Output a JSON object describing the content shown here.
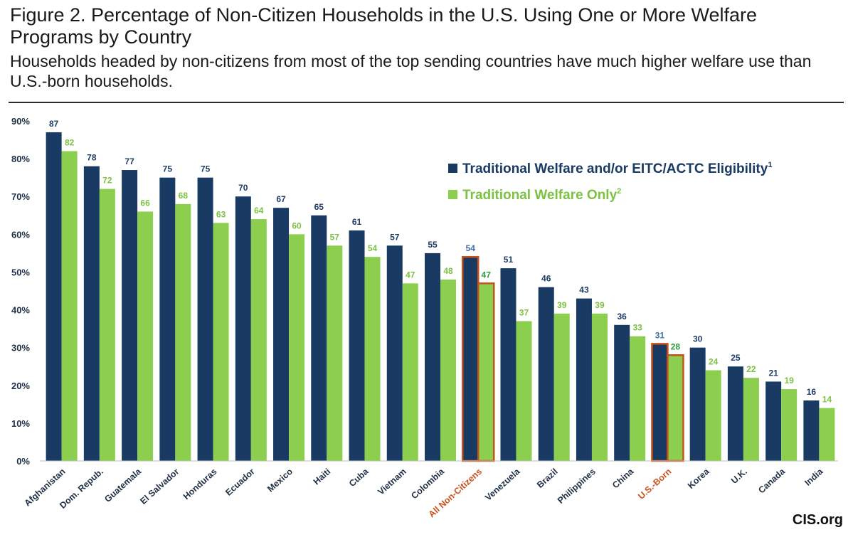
{
  "title": "Figure 2. Percentage of Non-Citizen Households in the U.S. Using One or More Welfare Programs by Country",
  "subtitle": "Households headed by non-citizens from most of the top sending countries have much higher welfare use than U.S.-born households.",
  "credit": "CIS.org",
  "colors": {
    "navy": "#183a63",
    "green": "#8ccf4e",
    "highlight": "#c9521c",
    "navy_label": "#1b3c64",
    "green_label": "#7cc242",
    "highlight_navy_label": "#3f6fa8",
    "highlight_green_label": "#2f9a42",
    "axis_text": "#1f2f44",
    "grid": "#d9d9d9"
  },
  "chart_data": {
    "type": "bar",
    "categories": [
      "Afghanistan",
      "Dom. Repub.",
      "Guatemala",
      "El Salvador",
      "Honduras",
      "Ecuador",
      "Mexico",
      "Haiti",
      "Cuba",
      "Vietnam",
      "Colombia",
      "All Non-Citizens",
      "Venezuela",
      "Brazil",
      "Philippines",
      "China",
      "U.S.-Born",
      "Korea",
      "U.K.",
      "Canada",
      "India"
    ],
    "highlighted": [
      "All Non-Citizens",
      "U.S.-Born"
    ],
    "series": [
      {
        "name": "Traditional Welfare and/or EITC/ACTC Eligibility",
        "superscript": "1",
        "values": [
          87,
          78,
          77,
          75,
          75,
          70,
          67,
          65,
          61,
          57,
          55,
          54,
          51,
          46,
          43,
          36,
          31,
          30,
          25,
          21,
          16
        ],
        "labels": [
          "87",
          "78",
          "77",
          "75",
          "75",
          "70",
          "67",
          "65",
          "61",
          "57",
          "55",
          "54",
          "51",
          "46",
          "43",
          "36",
          "31",
          "30",
          "25",
          "21",
          "16"
        ]
      },
      {
        "name": "Traditional Welfare Only",
        "superscript": "2",
        "values": [
          82,
          72,
          66,
          68,
          63,
          64,
          60,
          57,
          54,
          47,
          48,
          47,
          37,
          39,
          39,
          33,
          28,
          24,
          22,
          19,
          14
        ],
        "labels": [
          "82",
          "72",
          "66",
          "68",
          "63",
          "64",
          "60",
          "57",
          "54",
          "47",
          "48",
          "47",
          "37",
          "39",
          "39",
          "33",
          "28",
          "24",
          "22",
          "19",
          "14"
        ]
      }
    ],
    "yticks": [
      "0%",
      "10%",
      "20%",
      "30%",
      "40%",
      "50%",
      "60%",
      "70%",
      "80%",
      "90%"
    ],
    "ylim": [
      0,
      90
    ],
    "grid": false,
    "legend_position": "top-right"
  }
}
